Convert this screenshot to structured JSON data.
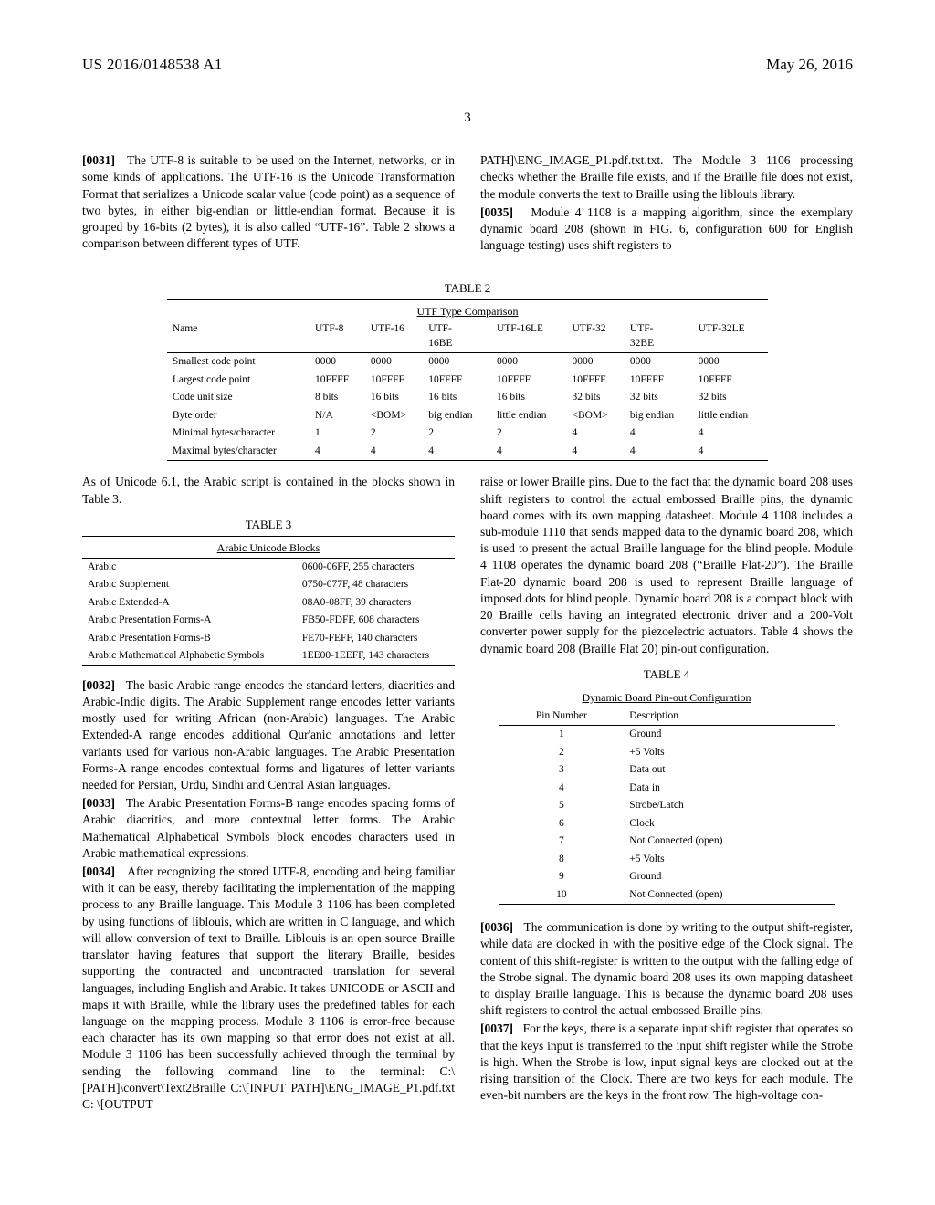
{
  "header": {
    "pub_num": "US 2016/0148538 A1",
    "pub_date": "May 26, 2016"
  },
  "page_number": "3",
  "col_left": {
    "p31": {
      "num": "[0031]",
      "text": "The UTF-8 is suitable to be used on the Internet, networks, or in some kinds of applications. The UTF-16 is the Unicode Transformation Format that serializes a Unicode scalar value (code point) as a sequence of two bytes, in either big-endian or little-endian format. Because it is grouped by 16-bits (2 bytes), it is also called “UTF-16”. Table 2 shows a comparison between different types of UTF."
    },
    "after_t2": "As of Unicode 6.1, the Arabic script is contained in the blocks shown in Table 3.",
    "p32": {
      "num": "[0032]",
      "text": "The basic Arabic range encodes the standard letters, diacritics and Arabic-Indic digits. The Arabic Supplement range encodes letter variants mostly used for writing African (non-Arabic) languages. The Arabic Extended-A range encodes additional Qur'anic annotations and letter variants used for various non-Arabic languages. The Arabic Presentation Forms-A range encodes contextual forms and ligatures of letter variants needed for Persian, Urdu, Sindhi and Central Asian languages."
    },
    "p33": {
      "num": "[0033]",
      "text": "The Arabic Presentation Forms-B range encodes spacing forms of Arabic diacritics, and more contextual letter forms. The Arabic Mathematical Alphabetical Symbols block encodes characters used in Arabic mathematical expressions."
    },
    "p34": {
      "num": "[0034]",
      "text": "After recognizing the stored UTF-8, encoding and being familiar with it can be easy, thereby facilitating the implementation of the mapping process to any Braille language. This Module 3 1106 has been completed by using functions of liblouis, which are written in C language, and which will allow conversion of text to Braille. Liblouis is an open source Braille translator having features that support the literary Braille, besides supporting the contracted and uncontracted translation for several languages, including English and Arabic. It takes UNICODE or ASCII and maps it with Braille, while the library uses the predefined tables for each language on the mapping process. Module 3 1106 is error-free because each character has its own mapping so that error does not exist at all. Module 3 1106 has been successfully achieved through the terminal by sending the following command line to the terminal: C:\\[PATH]\\convert\\Text2Braille C:\\[INPUT PATH]\\ENG_IMAGE_P1.pdf.txt C: \\[OUTPUT"
    }
  },
  "col_right": {
    "top1": "PATH]\\ENG_IMAGE_P1.pdf.txt.txt. The Module 3 1106 processing checks whether the Braille file exists, and if the Braille file does not exist, the module converts the text to Braille using the liblouis library.",
    "p35": {
      "num": "[0035]",
      "text": "Module 4 1108 is a mapping algorithm, since the exemplary dynamic board 208 (shown in FIG. 6, configuration 600 for English language testing) uses shift registers to"
    },
    "mid": "raise or lower Braille pins. Due to the fact that the dynamic board 208 uses shift registers to control the actual embossed Braille pins, the dynamic board comes with its own mapping datasheet. Module 4 1108 includes a sub-module 1110 that sends mapped data to the dynamic board 208, which is used to present the actual Braille language for the blind people. Module 4 1108 operates the dynamic board 208 (“Braille Flat-20”). The Braille Flat-20 dynamic board 208 is used to represent Braille language of imposed dots for blind people. Dynamic board 208 is a compact block with 20 Braille cells having an integrated electronic driver and a 200-Volt converter power supply for the piezoelectric actuators. Table 4 shows the dynamic board 208 (Braille Flat 20) pin-out configuration.",
    "p36": {
      "num": "[0036]",
      "text": "The communication is done by writing to the output shift-register, while data are clocked in with the positive edge of the Clock signal. The content of this shift-register is written to the output with the falling edge of the Strobe signal. The dynamic board 208 uses its own mapping datasheet to display Braille language. This is because the dynamic board 208 uses shift registers to control the actual embossed Braille pins."
    },
    "p37": {
      "num": "[0037]",
      "text": "For the keys, there is a separate input shift register that operates so that the keys input is transferred to the input shift register while the Strobe is high. When the Strobe is low, input signal keys are clocked out at the rising transition of the Clock. There are two keys for each module. The even-bit numbers are the keys in the front row. The high-voltage con-"
    }
  },
  "table2": {
    "label": "TABLE 2",
    "caption": "UTF Type Comparison",
    "headers": [
      "Name",
      "UTF-8",
      "UTF-16",
      "UTF-16BE",
      "UTF-16LE",
      "UTF-32",
      "UTF-32BE",
      "UTF-32LE"
    ],
    "rows": [
      [
        "Smallest code point",
        "0000",
        "0000",
        "0000",
        "0000",
        "0000",
        "0000",
        "0000"
      ],
      [
        "Largest code point",
        "10FFFF",
        "10FFFF",
        "10FFFF",
        "10FFFF",
        "10FFFF",
        "10FFFF",
        "10FFFF"
      ],
      [
        "Code unit size",
        "8 bits",
        "16 bits",
        "16 bits",
        "16 bits",
        "32 bits",
        "32 bits",
        "32 bits"
      ],
      [
        "Byte order",
        "N/A",
        "<BOM>",
        "big endian",
        "little endian",
        "<BOM>",
        "big endian",
        "little endian"
      ],
      [
        "Minimal bytes/character",
        "1",
        "2",
        "2",
        "2",
        "4",
        "4",
        "4"
      ],
      [
        "Maximal bytes/character",
        "4",
        "4",
        "4",
        "4",
        "4",
        "4",
        "4"
      ]
    ]
  },
  "table3": {
    "label": "TABLE 3",
    "caption": "Arabic Unicode Blocks",
    "rows": [
      [
        "Arabic",
        "0600-06FF, 255 characters"
      ],
      [
        "Arabic Supplement",
        "0750-077F, 48 characters"
      ],
      [
        "Arabic Extended-A",
        "08A0-08FF, 39 characters"
      ],
      [
        "Arabic Presentation Forms-A",
        "FB50-FDFF, 608 characters"
      ],
      [
        "Arabic Presentation Forms-B",
        "FE70-FEFF, 140 characters"
      ],
      [
        "Arabic Mathematical Alphabetic Symbols",
        "1EE00-1EEFF, 143 characters"
      ]
    ]
  },
  "table4": {
    "label": "TABLE 4",
    "caption": "Dynamic Board Pin-out Configuration",
    "headers": [
      "Pin Number",
      "Description"
    ],
    "rows": [
      [
        "1",
        "Ground"
      ],
      [
        "2",
        "+5 Volts"
      ],
      [
        "3",
        "Data out"
      ],
      [
        "4",
        "Data in"
      ],
      [
        "5",
        "Strobe/Latch"
      ],
      [
        "6",
        "Clock"
      ],
      [
        "7",
        "Not Connected (open)"
      ],
      [
        "8",
        "+5 Volts"
      ],
      [
        "9",
        "Ground"
      ],
      [
        "10",
        "Not Connected (open)"
      ]
    ]
  }
}
